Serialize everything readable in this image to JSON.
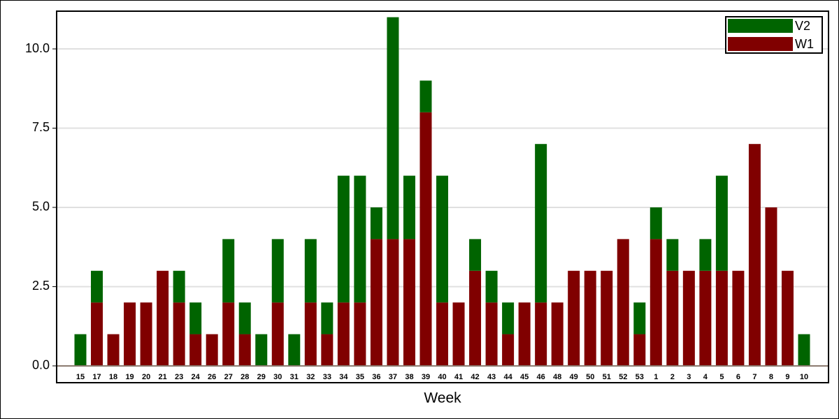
{
  "chart_data": {
    "type": "stacked_bar",
    "xlabel": "Week",
    "categories": [
      "15",
      "17",
      "18",
      "19",
      "20",
      "21",
      "23",
      "24",
      "26",
      "27",
      "28",
      "29",
      "30",
      "31",
      "32",
      "33",
      "34",
      "35",
      "36",
      "37",
      "38",
      "39",
      "40",
      "41",
      "42",
      "43",
      "44",
      "45",
      "46",
      "48",
      "49",
      "50",
      "51",
      "52",
      "53",
      "1",
      "2",
      "3",
      "4",
      "5",
      "6",
      "7",
      "8",
      "9",
      "10"
    ],
    "series": [
      {
        "name": "W1",
        "color": "#800000",
        "values": [
          0,
          2,
          1,
          2,
          2,
          3,
          2,
          1,
          1,
          2,
          1,
          0,
          2,
          0,
          2,
          1,
          2,
          2,
          4,
          4,
          4,
          8,
          2,
          2,
          3,
          2,
          1,
          2,
          2,
          2,
          3,
          3,
          3,
          4,
          1,
          4,
          3,
          3,
          3,
          3,
          3,
          7,
          5,
          3,
          0
        ]
      },
      {
        "name": "V2",
        "color": "#006400",
        "values": [
          1,
          1,
          0,
          0,
          0,
          0,
          1,
          1,
          0,
          2,
          1,
          1,
          2,
          1,
          2,
          1,
          4,
          4,
          1,
          7,
          2,
          1,
          4,
          0,
          1,
          1,
          1,
          0,
          5,
          0,
          0,
          0,
          0,
          0,
          1,
          1,
          1,
          0,
          1,
          3,
          0,
          0,
          0,
          0,
          1
        ]
      }
    ],
    "ylim": [
      -0.53,
      11.19
    ],
    "yticks": [
      {
        "value": 0,
        "label": "0.0"
      },
      2.5,
      {
        "value": 5,
        "label": "5.0"
      },
      7.5,
      {
        "value": 10,
        "label": "10.0"
      }
    ],
    "grid": true,
    "legend": "upper right"
  }
}
